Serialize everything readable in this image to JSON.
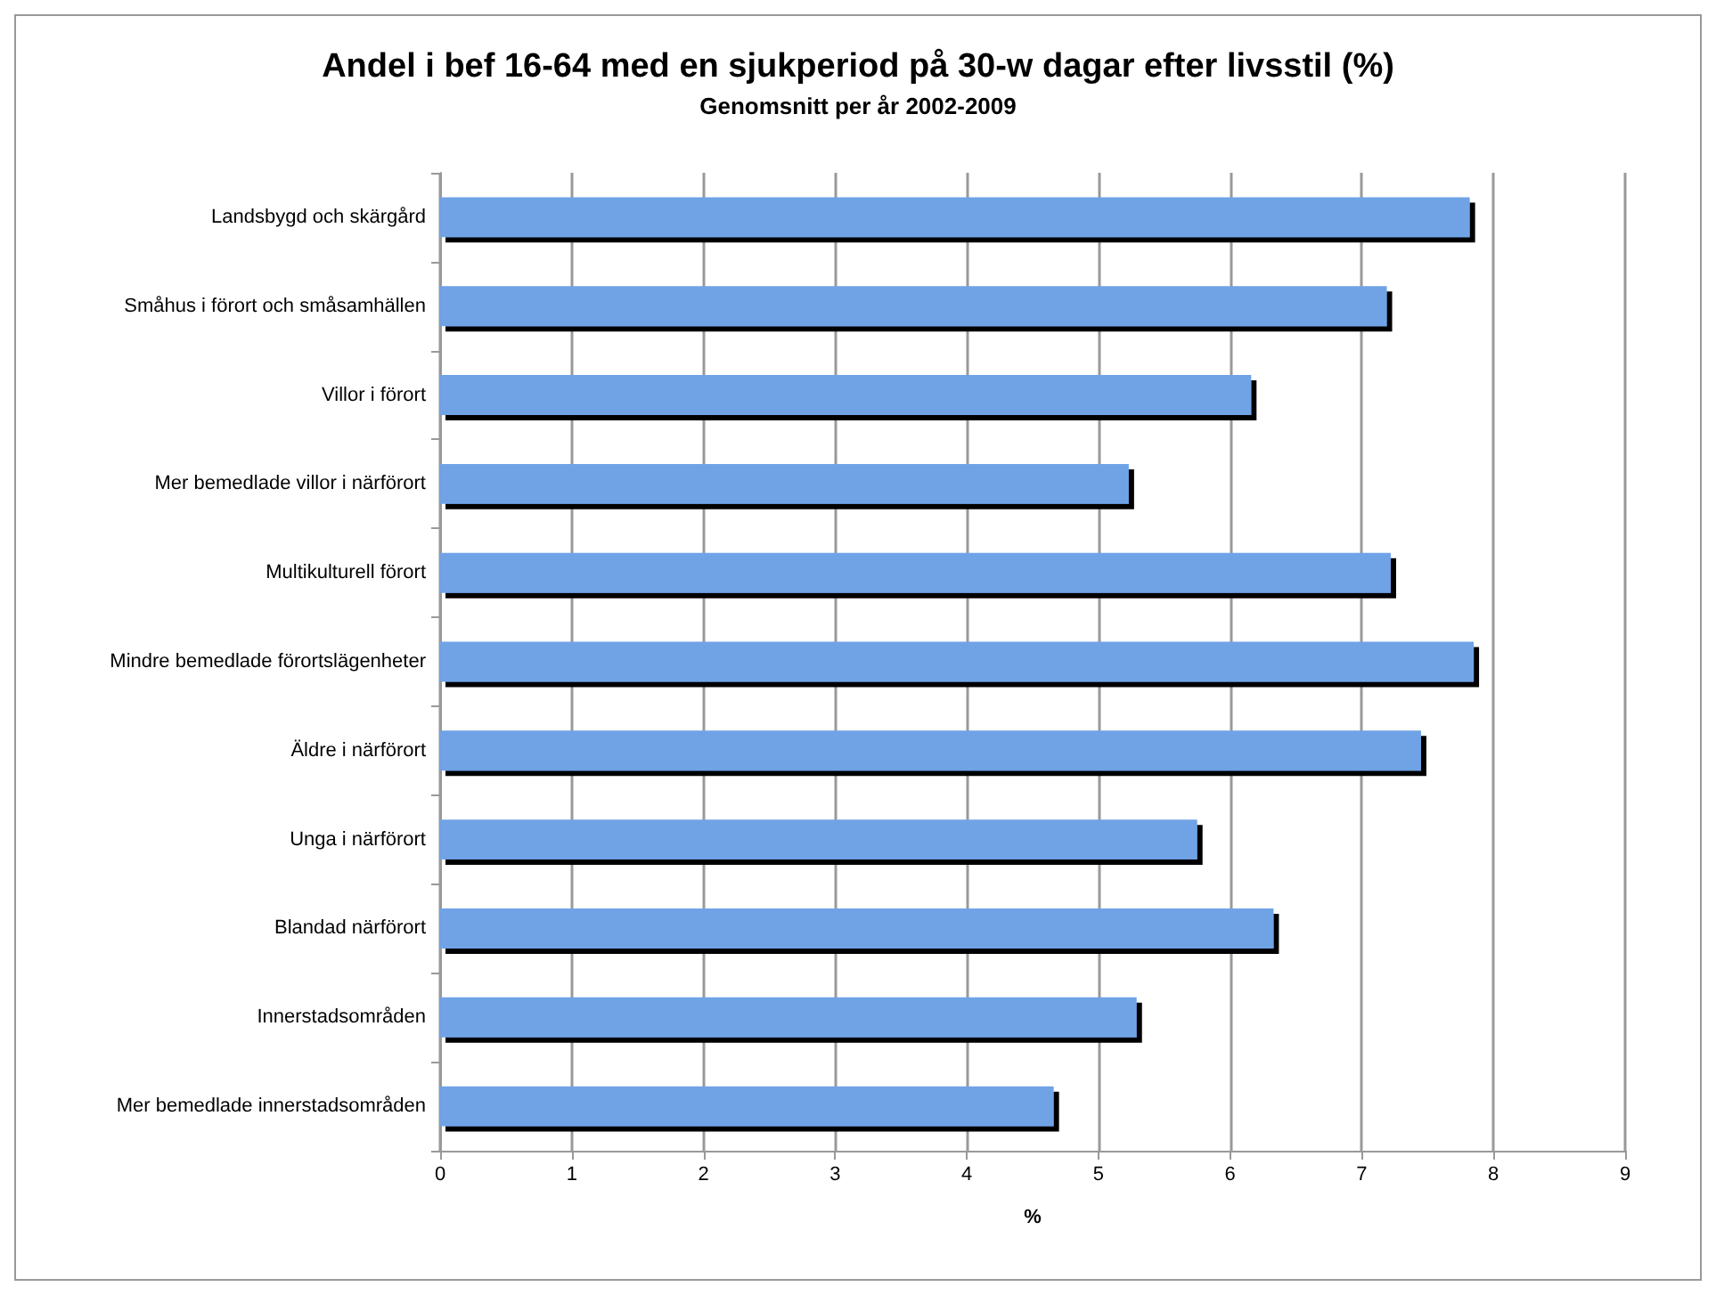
{
  "chart_data": {
    "type": "bar",
    "orientation": "horizontal",
    "title": "Andel i bef 16-64 med en sjukperiod på 30-w dagar efter livsstil (%)",
    "subtitle": "Genomsnitt per år 2002-2009",
    "xlabel": "%",
    "categories": [
      "Landsbygd och skärgård",
      "Småhus i förort och småsamhällen",
      "Villor i förort",
      "Mer bemedlade villor i närförort",
      "Multikulturell förort",
      "Mindre bemedlade förortslägenheter",
      "Äldre i närförort",
      "Unga i närförort",
      "Blandad närförort",
      "Innerstadsområden",
      "Mer bemedlade innerstadsområden"
    ],
    "values": [
      7.82,
      7.19,
      6.16,
      5.23,
      7.22,
      7.85,
      7.45,
      5.75,
      6.33,
      5.29,
      4.66
    ],
    "color": "#6fa3e6",
    "xlim": [
      0,
      9
    ],
    "xticks": [
      0,
      1,
      2,
      3,
      4,
      5,
      6,
      7,
      8,
      9
    ],
    "grid": "x"
  }
}
